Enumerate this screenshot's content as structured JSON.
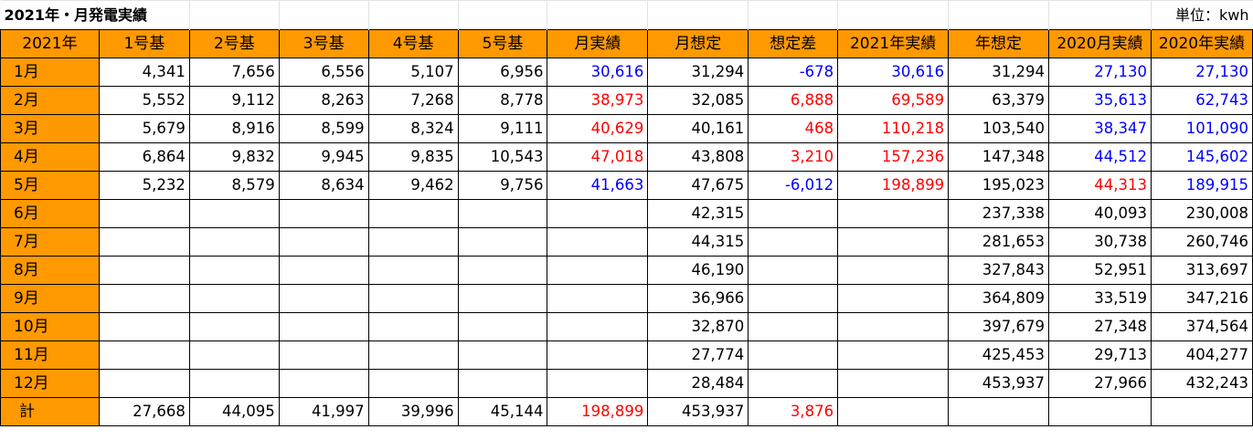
{
  "title": "2021年・月発電実績",
  "unit": "単位：kwh",
  "headers": [
    "2021年",
    "1号基",
    "2号基",
    "3号基",
    "4号基",
    "5号基",
    "月実績",
    "月想定",
    "想定差",
    "2021年実績",
    "年想定",
    "2020月実績",
    "2020年実績"
  ],
  "colors": {
    "header_bg": "#ff9900",
    "red": "#ff0000",
    "blue": "#0000ff",
    "text": "#000000"
  },
  "rows": [
    {
      "month": "1月",
      "cells": [
        {
          "v": "4,341",
          "c": "black"
        },
        {
          "v": "7,656",
          "c": "black"
        },
        {
          "v": "6,556",
          "c": "black"
        },
        {
          "v": "5,107",
          "c": "black"
        },
        {
          "v": "6,956",
          "c": "black"
        },
        {
          "v": "30,616",
          "c": "blue"
        },
        {
          "v": "31,294",
          "c": "black"
        },
        {
          "v": "-678",
          "c": "blue"
        },
        {
          "v": "30,616",
          "c": "blue"
        },
        {
          "v": "31,294",
          "c": "black"
        },
        {
          "v": "27,130",
          "c": "blue"
        },
        {
          "v": "27,130",
          "c": "blue"
        }
      ]
    },
    {
      "month": "2月",
      "cells": [
        {
          "v": "5,552",
          "c": "black"
        },
        {
          "v": "9,112",
          "c": "black"
        },
        {
          "v": "8,263",
          "c": "black"
        },
        {
          "v": "7,268",
          "c": "black"
        },
        {
          "v": "8,778",
          "c": "black"
        },
        {
          "v": "38,973",
          "c": "red"
        },
        {
          "v": "32,085",
          "c": "black"
        },
        {
          "v": "6,888",
          "c": "red"
        },
        {
          "v": "69,589",
          "c": "red"
        },
        {
          "v": "63,379",
          "c": "black"
        },
        {
          "v": "35,613",
          "c": "blue"
        },
        {
          "v": "62,743",
          "c": "blue"
        }
      ]
    },
    {
      "month": "3月",
      "cells": [
        {
          "v": "5,679",
          "c": "black"
        },
        {
          "v": "8,916",
          "c": "black"
        },
        {
          "v": "8,599",
          "c": "black"
        },
        {
          "v": "8,324",
          "c": "black"
        },
        {
          "v": "9,111",
          "c": "black"
        },
        {
          "v": "40,629",
          "c": "red"
        },
        {
          "v": "40,161",
          "c": "black"
        },
        {
          "v": "468",
          "c": "red"
        },
        {
          "v": "110,218",
          "c": "red"
        },
        {
          "v": "103,540",
          "c": "black"
        },
        {
          "v": "38,347",
          "c": "blue"
        },
        {
          "v": "101,090",
          "c": "blue"
        }
      ]
    },
    {
      "month": "4月",
      "cells": [
        {
          "v": "6,864",
          "c": "black"
        },
        {
          "v": "9,832",
          "c": "black"
        },
        {
          "v": "9,945",
          "c": "black"
        },
        {
          "v": "9,835",
          "c": "black"
        },
        {
          "v": "10,543",
          "c": "black"
        },
        {
          "v": "47,018",
          "c": "red"
        },
        {
          "v": "43,808",
          "c": "black"
        },
        {
          "v": "3,210",
          "c": "red"
        },
        {
          "v": "157,236",
          "c": "red"
        },
        {
          "v": "147,348",
          "c": "black"
        },
        {
          "v": "44,512",
          "c": "blue"
        },
        {
          "v": "145,602",
          "c": "blue"
        }
      ]
    },
    {
      "month": "5月",
      "cells": [
        {
          "v": "5,232",
          "c": "black"
        },
        {
          "v": "8,579",
          "c": "black"
        },
        {
          "v": "8,634",
          "c": "black"
        },
        {
          "v": "9,462",
          "c": "black"
        },
        {
          "v": "9,756",
          "c": "black"
        },
        {
          "v": "41,663",
          "c": "blue"
        },
        {
          "v": "47,675",
          "c": "black"
        },
        {
          "v": "-6,012",
          "c": "blue"
        },
        {
          "v": "198,899",
          "c": "red"
        },
        {
          "v": "195,023",
          "c": "black"
        },
        {
          "v": "44,313",
          "c": "red"
        },
        {
          "v": "189,915",
          "c": "blue"
        }
      ]
    },
    {
      "month": "6月",
      "cells": [
        {
          "v": "",
          "c": "black"
        },
        {
          "v": "",
          "c": "black"
        },
        {
          "v": "",
          "c": "black"
        },
        {
          "v": "",
          "c": "black"
        },
        {
          "v": "",
          "c": "black"
        },
        {
          "v": "",
          "c": "black"
        },
        {
          "v": "42,315",
          "c": "black"
        },
        {
          "v": "",
          "c": "black"
        },
        {
          "v": "",
          "c": "black"
        },
        {
          "v": "237,338",
          "c": "black"
        },
        {
          "v": "40,093",
          "c": "black"
        },
        {
          "v": "230,008",
          "c": "black"
        }
      ]
    },
    {
      "month": "7月",
      "cells": [
        {
          "v": "",
          "c": "black"
        },
        {
          "v": "",
          "c": "black"
        },
        {
          "v": "",
          "c": "black"
        },
        {
          "v": "",
          "c": "black"
        },
        {
          "v": "",
          "c": "black"
        },
        {
          "v": "",
          "c": "black"
        },
        {
          "v": "44,315",
          "c": "black"
        },
        {
          "v": "",
          "c": "black"
        },
        {
          "v": "",
          "c": "black"
        },
        {
          "v": "281,653",
          "c": "black"
        },
        {
          "v": "30,738",
          "c": "black"
        },
        {
          "v": "260,746",
          "c": "black"
        }
      ]
    },
    {
      "month": "8月",
      "cells": [
        {
          "v": "",
          "c": "black"
        },
        {
          "v": "",
          "c": "black"
        },
        {
          "v": "",
          "c": "black"
        },
        {
          "v": "",
          "c": "black"
        },
        {
          "v": "",
          "c": "black"
        },
        {
          "v": "",
          "c": "black"
        },
        {
          "v": "46,190",
          "c": "black"
        },
        {
          "v": "",
          "c": "black"
        },
        {
          "v": "",
          "c": "black"
        },
        {
          "v": "327,843",
          "c": "black"
        },
        {
          "v": "52,951",
          "c": "black"
        },
        {
          "v": "313,697",
          "c": "black"
        }
      ]
    },
    {
      "month": "9月",
      "cells": [
        {
          "v": "",
          "c": "black"
        },
        {
          "v": "",
          "c": "black"
        },
        {
          "v": "",
          "c": "black"
        },
        {
          "v": "",
          "c": "black"
        },
        {
          "v": "",
          "c": "black"
        },
        {
          "v": "",
          "c": "black"
        },
        {
          "v": "36,966",
          "c": "black"
        },
        {
          "v": "",
          "c": "black"
        },
        {
          "v": "",
          "c": "black"
        },
        {
          "v": "364,809",
          "c": "black"
        },
        {
          "v": "33,519",
          "c": "black"
        },
        {
          "v": "347,216",
          "c": "black"
        }
      ]
    },
    {
      "month": "10月",
      "cells": [
        {
          "v": "",
          "c": "black"
        },
        {
          "v": "",
          "c": "black"
        },
        {
          "v": "",
          "c": "black"
        },
        {
          "v": "",
          "c": "black"
        },
        {
          "v": "",
          "c": "black"
        },
        {
          "v": "",
          "c": "black"
        },
        {
          "v": "32,870",
          "c": "black"
        },
        {
          "v": "",
          "c": "black"
        },
        {
          "v": "",
          "c": "black"
        },
        {
          "v": "397,679",
          "c": "black"
        },
        {
          "v": "27,348",
          "c": "black"
        },
        {
          "v": "374,564",
          "c": "black"
        }
      ]
    },
    {
      "month": "11月",
      "cells": [
        {
          "v": "",
          "c": "black"
        },
        {
          "v": "",
          "c": "black"
        },
        {
          "v": "",
          "c": "black"
        },
        {
          "v": "",
          "c": "black"
        },
        {
          "v": "",
          "c": "black"
        },
        {
          "v": "",
          "c": "black"
        },
        {
          "v": "27,774",
          "c": "black"
        },
        {
          "v": "",
          "c": "black"
        },
        {
          "v": "",
          "c": "black"
        },
        {
          "v": "425,453",
          "c": "black"
        },
        {
          "v": "29,713",
          "c": "black"
        },
        {
          "v": "404,277",
          "c": "black"
        }
      ]
    },
    {
      "month": "12月",
      "cells": [
        {
          "v": "",
          "c": "black"
        },
        {
          "v": "",
          "c": "black"
        },
        {
          "v": "",
          "c": "black"
        },
        {
          "v": "",
          "c": "black"
        },
        {
          "v": "",
          "c": "black"
        },
        {
          "v": "",
          "c": "black"
        },
        {
          "v": "28,484",
          "c": "black"
        },
        {
          "v": "",
          "c": "black"
        },
        {
          "v": "",
          "c": "black"
        },
        {
          "v": "453,937",
          "c": "black"
        },
        {
          "v": "27,966",
          "c": "black"
        },
        {
          "v": "432,243",
          "c": "black"
        }
      ]
    }
  ],
  "total": {
    "label": "計",
    "cells": [
      {
        "v": "27,668",
        "c": "black"
      },
      {
        "v": "44,095",
        "c": "black"
      },
      {
        "v": "41,997",
        "c": "black"
      },
      {
        "v": "39,996",
        "c": "black"
      },
      {
        "v": "45,144",
        "c": "black"
      },
      {
        "v": "198,899",
        "c": "red"
      },
      {
        "v": "453,937",
        "c": "black"
      },
      {
        "v": "3,876",
        "c": "red"
      },
      {
        "v": "",
        "c": "black"
      },
      {
        "v": "",
        "c": "black"
      },
      {
        "v": "",
        "c": "black"
      },
      {
        "v": "",
        "c": "black"
      }
    ]
  }
}
